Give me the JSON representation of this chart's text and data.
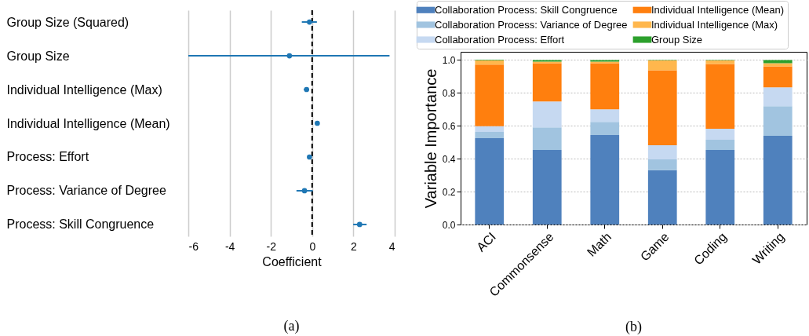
{
  "chart_data": [
    {
      "type": "scatter",
      "orientation": "horizontal",
      "categories": [
        "Group Size (Squared)",
        "Group Size",
        "Individual Intelligence (Max)",
        "Individual Intelligence (Mean)",
        "Process: Effort",
        "Process: Variance of Degree",
        "Process: Skill Congruence"
      ],
      "values": [
        -0.13,
        -1.1,
        -0.27,
        0.25,
        -0.13,
        -0.37,
        2.3
      ],
      "errors": [
        [
          -0.5,
          0.23
        ],
        [
          -6.0,
          3.75
        ],
        [
          -0.4,
          -0.15
        ],
        null,
        null,
        [
          -0.76,
          0.03
        ],
        [
          1.99,
          2.64
        ]
      ],
      "color": "#1f77b4",
      "marker": "circle",
      "xlabel": "Coefficient",
      "xlim": [
        -6,
        4
      ],
      "xticks": [
        -6,
        -4,
        -2,
        0,
        2,
        4
      ],
      "grid": "x",
      "ref_lines": [
        {
          "axis": "x",
          "value": 0,
          "color": "#000000",
          "line_style": "dashed"
        }
      ],
      "annotations": [
        "(a)"
      ]
    },
    {
      "type": "bar",
      "stacked": true,
      "categories": [
        "ACI",
        "Commonsense",
        "Math",
        "Game",
        "Coding",
        "Writing"
      ],
      "series": [
        {
          "name": "Collaboration Process: Skill Congruence",
          "color": "#4f81bd",
          "values": [
            0.525,
            0.453,
            0.544,
            0.33,
            0.453,
            0.539
          ]
        },
        {
          "name": "Collaboration Process: Variance of Degree",
          "color": "#a1c4e0",
          "values": [
            0.038,
            0.138,
            0.08,
            0.066,
            0.062,
            0.18
          ]
        },
        {
          "name": "Collaboration Process: Effort",
          "color": "#c6d9f1",
          "values": [
            0.035,
            0.157,
            0.076,
            0.086,
            0.067,
            0.115
          ]
        },
        {
          "name": "Individual Intelligence (Mean)",
          "color": "#ff7f0e",
          "values": [
            0.375,
            0.233,
            0.281,
            0.456,
            0.394,
            0.128
          ]
        },
        {
          "name": "Individual Intelligence (Max)",
          "color": "#ffb74d",
          "values": [
            0.025,
            0.009,
            0.009,
            0.059,
            0.021,
            0.019
          ]
        },
        {
          "name": "Group Size",
          "color": "#2ca02c",
          "values": [
            0.003,
            0.01,
            0.01,
            0.003,
            0.003,
            0.019
          ]
        }
      ],
      "ylabel": "Variable Importance",
      "ylim": [
        0,
        1.05
      ],
      "yticks": [
        {
          "value": 0,
          "label": "0.0"
        },
        {
          "value": 0.2,
          "label": "0.2"
        },
        {
          "value": 0.4,
          "label": "0.4"
        },
        {
          "value": 0.6,
          "label": "0.6"
        },
        {
          "value": 0.8,
          "label": "0.8"
        },
        {
          "value": 1,
          "label": "1.0"
        }
      ],
      "grid": "y",
      "legend": "top",
      "annotations": [
        "(b)"
      ]
    }
  ]
}
